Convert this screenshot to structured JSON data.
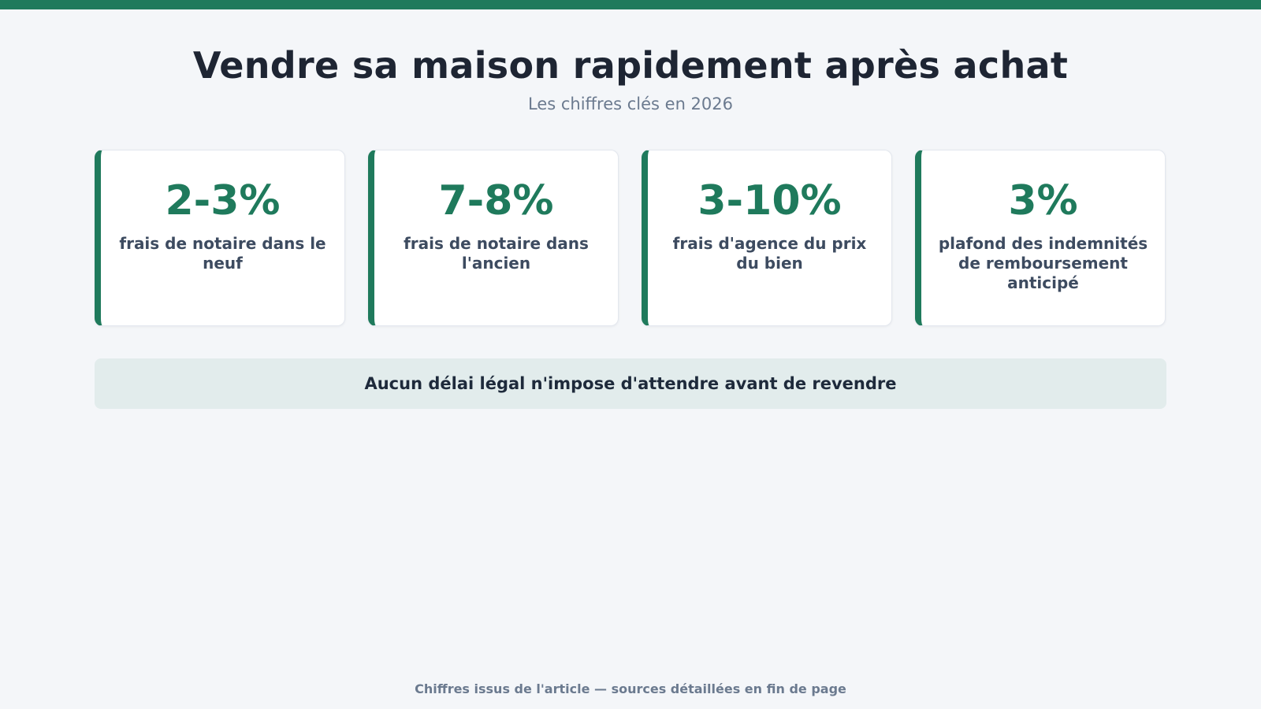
{
  "header": {
    "title": "Vendre sa maison rapidement après achat",
    "subtitle": "Les chiffres clés en 2026"
  },
  "stats": [
    {
      "value": "2-3%",
      "label": "frais de notaire dans le neuf"
    },
    {
      "value": "7-8%",
      "label": "frais de notaire dans l'ancien"
    },
    {
      "value": "3-10%",
      "label": "frais d'agence du prix du bien"
    },
    {
      "value": "3%",
      "label": "plafond des indemnités de remboursement anticipé"
    }
  ],
  "banner": {
    "text": "Aucun délai légal n'impose d'attendre avant de revendre"
  },
  "footer": {
    "text": "Chiffres issus de l'article — sources détaillées en fin de page"
  },
  "colors": {
    "accent": "#1f7a5c",
    "background": "#f4f6f9",
    "banner_background": "#e2ecec",
    "title_text": "#1e2533",
    "muted_text": "#6b7a8f"
  }
}
